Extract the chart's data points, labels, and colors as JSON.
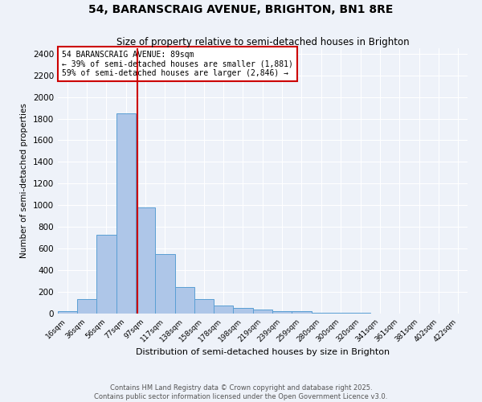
{
  "title": "54, BARANSCRAIG AVENUE, BRIGHTON, BN1 8RE",
  "subtitle": "Size of property relative to semi-detached houses in Brighton",
  "xlabel": "Distribution of semi-detached houses by size in Brighton",
  "ylabel": "Number of semi-detached properties",
  "bin_labels": [
    "16sqm",
    "36sqm",
    "56sqm",
    "77sqm",
    "97sqm",
    "117sqm",
    "138sqm",
    "158sqm",
    "178sqm",
    "198sqm",
    "219sqm",
    "239sqm",
    "259sqm",
    "280sqm",
    "300sqm",
    "320sqm",
    "341sqm",
    "361sqm",
    "381sqm",
    "402sqm",
    "422sqm"
  ],
  "bar_heights": [
    20,
    130,
    730,
    1850,
    980,
    550,
    245,
    135,
    75,
    55,
    35,
    25,
    20,
    10,
    5,
    5,
    2,
    2,
    0,
    0,
    0
  ],
  "bar_color": "#aec6e8",
  "bar_edge_color": "#5a9fd4",
  "property_line_x": 89,
  "annotation_text": "54 BARANSCRAIG AVENUE: 89sqm\n← 39% of semi-detached houses are smaller (1,881)\n59% of semi-detached houses are larger (2,846) →",
  "annotation_box_color": "#ffffff",
  "annotation_box_edge": "#cc0000",
  "vline_color": "#cc0000",
  "ylim": [
    0,
    2450
  ],
  "yticks": [
    0,
    200,
    400,
    600,
    800,
    1000,
    1200,
    1400,
    1600,
    1800,
    2000,
    2200,
    2400
  ],
  "footer": "Contains HM Land Registry data © Crown copyright and database right 2025.\nContains public sector information licensed under the Open Government Licence v3.0.",
  "bg_color": "#eef2f9",
  "grid_color": "#ffffff",
  "bin_edges": [
    6,
    26,
    46,
    67,
    87,
    107,
    128,
    148,
    168,
    188,
    209,
    229,
    249,
    270,
    290,
    310,
    331,
    351,
    371,
    392,
    412,
    432
  ]
}
